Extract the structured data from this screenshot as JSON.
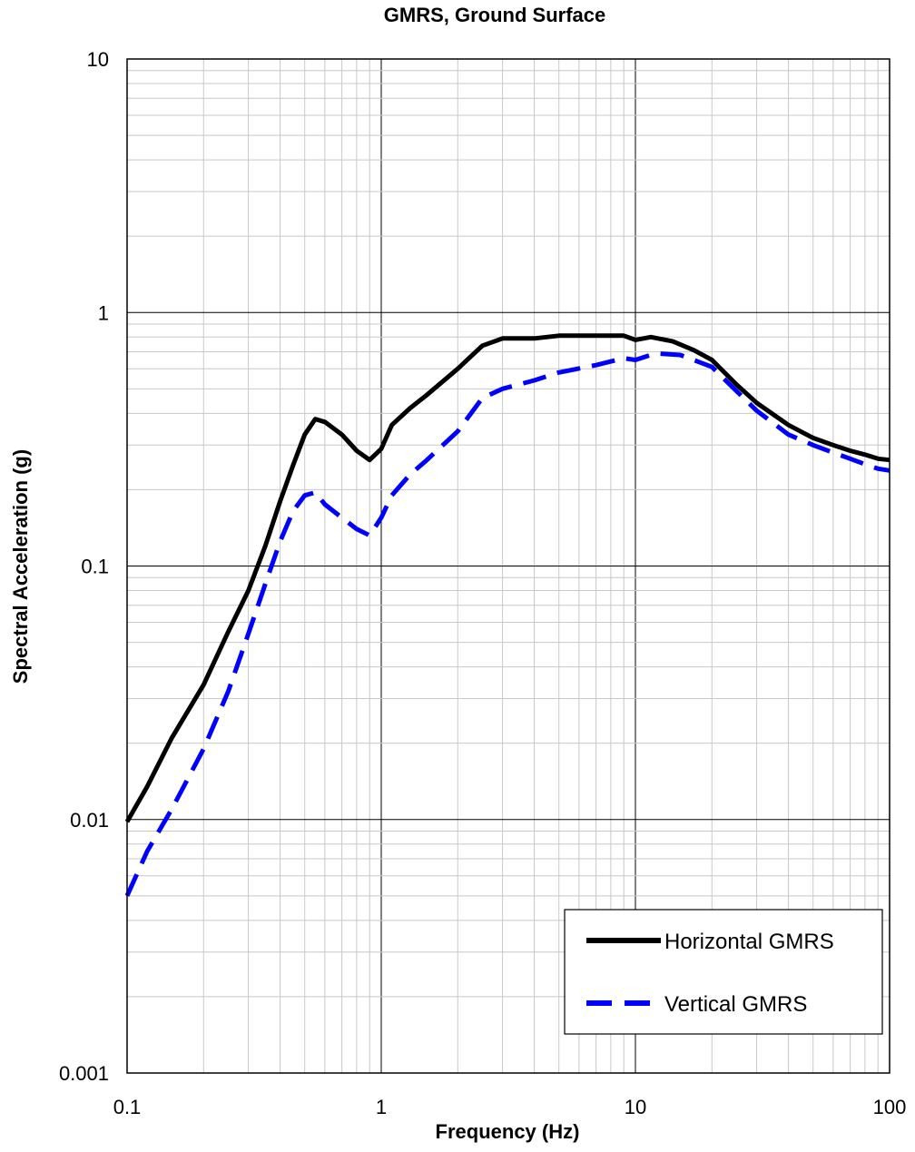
{
  "chart_data": {
    "type": "line",
    "title": "GMRS, Ground Surface",
    "xlabel": "Frequency (Hz)",
    "ylabel": "Spectral Acceleration (g)",
    "x_scale": "log",
    "y_scale": "log",
    "xlim": [
      0.1,
      100
    ],
    "ylim": [
      0.001,
      10
    ],
    "x_ticks": [
      "0.1",
      "1",
      "10",
      "100"
    ],
    "y_ticks": [
      "0.001",
      "0.01",
      "0.1",
      "1",
      "10"
    ],
    "grid": true,
    "legend_position": "bottom-right",
    "series": [
      {
        "name": "Horizontal GMRS",
        "color": "#000000",
        "line_style": "solid",
        "points": [
          [
            0.1,
            0.0098
          ],
          [
            0.12,
            0.0135
          ],
          [
            0.15,
            0.021
          ],
          [
            0.2,
            0.034
          ],
          [
            0.25,
            0.055
          ],
          [
            0.3,
            0.08
          ],
          [
            0.35,
            0.12
          ],
          [
            0.4,
            0.18
          ],
          [
            0.45,
            0.25
          ],
          [
            0.5,
            0.33
          ],
          [
            0.55,
            0.38
          ],
          [
            0.6,
            0.37
          ],
          [
            0.7,
            0.33
          ],
          [
            0.8,
            0.285
          ],
          [
            0.9,
            0.262
          ],
          [
            1.0,
            0.29
          ],
          [
            1.1,
            0.36
          ],
          [
            1.3,
            0.42
          ],
          [
            1.5,
            0.47
          ],
          [
            2.0,
            0.6
          ],
          [
            2.5,
            0.74
          ],
          [
            3.0,
            0.79
          ],
          [
            4.0,
            0.79
          ],
          [
            5.0,
            0.81
          ],
          [
            7.0,
            0.81
          ],
          [
            9.0,
            0.81
          ],
          [
            10.0,
            0.78
          ],
          [
            11.5,
            0.8
          ],
          [
            14.0,
            0.77
          ],
          [
            17.0,
            0.71
          ],
          [
            20.0,
            0.65
          ],
          [
            25.0,
            0.52
          ],
          [
            30.0,
            0.44
          ],
          [
            40.0,
            0.36
          ],
          [
            50.0,
            0.32
          ],
          [
            60.0,
            0.3
          ],
          [
            70.0,
            0.285
          ],
          [
            80.0,
            0.275
          ],
          [
            90.0,
            0.265
          ],
          [
            100.0,
            0.262
          ]
        ]
      },
      {
        "name": "Vertical GMRS",
        "color": "#0000ff",
        "line_style": "dashed",
        "points": [
          [
            0.1,
            0.005
          ],
          [
            0.12,
            0.0075
          ],
          [
            0.15,
            0.011
          ],
          [
            0.2,
            0.019
          ],
          [
            0.25,
            0.032
          ],
          [
            0.3,
            0.054
          ],
          [
            0.35,
            0.085
          ],
          [
            0.4,
            0.125
          ],
          [
            0.45,
            0.165
          ],
          [
            0.5,
            0.19
          ],
          [
            0.55,
            0.195
          ],
          [
            0.6,
            0.175
          ],
          [
            0.7,
            0.155
          ],
          [
            0.8,
            0.14
          ],
          [
            0.9,
            0.132
          ],
          [
            1.0,
            0.155
          ],
          [
            1.1,
            0.19
          ],
          [
            1.3,
            0.23
          ],
          [
            1.5,
            0.26
          ],
          [
            2.0,
            0.34
          ],
          [
            2.5,
            0.46
          ],
          [
            3.0,
            0.5
          ],
          [
            4.0,
            0.54
          ],
          [
            5.0,
            0.58
          ],
          [
            7.0,
            0.62
          ],
          [
            9.0,
            0.66
          ],
          [
            10.0,
            0.65
          ],
          [
            12.0,
            0.69
          ],
          [
            15.0,
            0.68
          ],
          [
            20.0,
            0.61
          ],
          [
            25.0,
            0.49
          ],
          [
            30.0,
            0.41
          ],
          [
            40.0,
            0.33
          ],
          [
            50.0,
            0.3
          ],
          [
            60.0,
            0.28
          ],
          [
            70.0,
            0.265
          ],
          [
            80.0,
            0.252
          ],
          [
            90.0,
            0.242
          ],
          [
            100.0,
            0.238
          ]
        ]
      }
    ]
  }
}
